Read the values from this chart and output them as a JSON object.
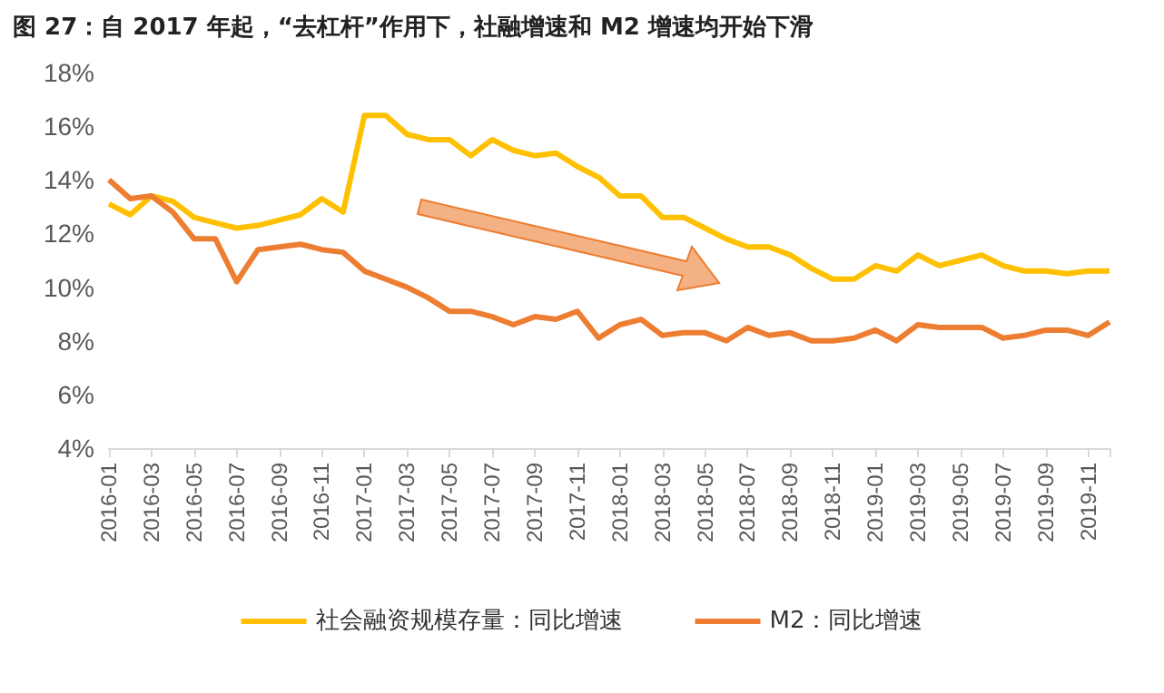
{
  "chart_data": {
    "type": "line",
    "title": "图 27：自 2017 年起，“去杠杆”作用下，社融增速和 M2 增速均开始下滑",
    "categories": [
      "2016-01",
      null,
      "2016-03",
      null,
      "2016-05",
      null,
      "2016-07",
      null,
      "2016-09",
      null,
      "2016-11",
      null,
      "2017-01",
      null,
      "2017-03",
      null,
      "2017-05",
      null,
      "2017-07",
      null,
      "2017-09",
      null,
      "2017-11",
      null,
      "2018-01",
      null,
      "2018-03",
      null,
      "2018-05",
      null,
      "2018-07",
      null,
      "2018-09",
      null,
      "2018-11",
      null,
      "2019-01",
      null,
      "2019-03",
      null,
      "2019-05",
      null,
      "2019-07",
      null,
      "2019-09",
      null,
      "2019-11",
      null
    ],
    "series": [
      {
        "name": "社会融资规模存量：同比增速",
        "color": "#ffc000",
        "values": [
          13.1,
          12.7,
          13.4,
          13.2,
          12.6,
          12.4,
          12.2,
          12.3,
          12.5,
          12.7,
          13.3,
          12.8,
          16.4,
          16.4,
          15.7,
          15.5,
          15.5,
          14.9,
          15.5,
          15.1,
          14.9,
          15.0,
          14.5,
          14.1,
          13.4,
          13.4,
          12.6,
          12.6,
          12.2,
          11.8,
          11.5,
          11.5,
          11.2,
          10.7,
          10.3,
          10.3,
          10.8,
          10.6,
          11.2,
          10.8,
          11.0,
          11.2,
          10.8,
          10.6,
          10.6,
          10.5,
          10.6,
          10.6
        ]
      },
      {
        "name": "M2：同比增速",
        "color": "#ed7d31",
        "values": [
          14.0,
          13.3,
          13.4,
          12.8,
          11.8,
          11.8,
          10.2,
          11.4,
          11.5,
          11.6,
          11.4,
          11.3,
          10.6,
          10.3,
          10.0,
          9.6,
          9.1,
          9.1,
          8.9,
          8.6,
          8.9,
          8.8,
          9.1,
          8.1,
          8.6,
          8.8,
          8.2,
          8.3,
          8.3,
          8.0,
          8.5,
          8.2,
          8.3,
          8.0,
          8.0,
          8.1,
          8.4,
          8.0,
          8.6,
          8.5,
          8.5,
          8.5,
          8.1,
          8.2,
          8.4,
          8.4,
          8.2,
          8.7
        ]
      }
    ],
    "ylim": [
      4,
      18
    ],
    "yticks": [
      {
        "value": 4,
        "label": "4%"
      },
      {
        "value": 6,
        "label": "6%"
      },
      {
        "value": 8,
        "label": "8%"
      },
      {
        "value": 10,
        "label": "10%"
      },
      {
        "value": 12,
        "label": "12%"
      },
      {
        "value": 14,
        "label": "14%"
      },
      {
        "value": 16,
        "label": "16%"
      },
      {
        "value": 18,
        "label": "18%"
      }
    ],
    "grid": false,
    "legend": "bottom",
    "marker": "none",
    "line_style": "solid"
  }
}
